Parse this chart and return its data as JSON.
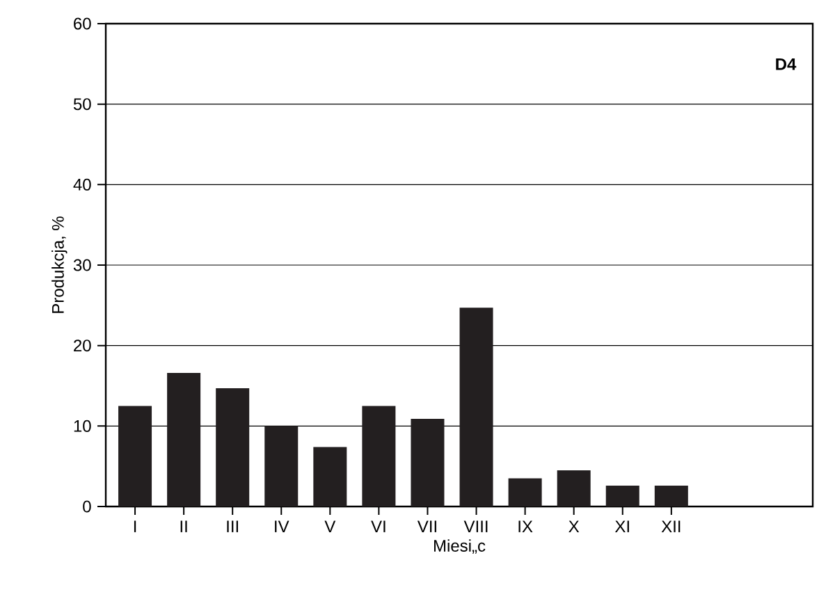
{
  "chart_data": {
    "type": "bar",
    "xlabel": "Miesi„c",
    "ylabel": "Produkcja, %",
    "categories": [
      "I",
      "II",
      "III",
      "IV",
      "V",
      "VI",
      "VII",
      "VIII",
      "IX",
      "X",
      "XI",
      "XII"
    ],
    "values": [
      12.5,
      16.6,
      14.7,
      10.0,
      7.4,
      12.5,
      10.9,
      24.7,
      3.5,
      4.5,
      2.6,
      2.6
    ],
    "color": "#231f20",
    "ylim": [
      0,
      60
    ],
    "yticks": [
      0,
      10,
      20,
      30,
      40,
      50,
      60
    ],
    "grid": "y",
    "annotations": [
      "D4"
    ]
  }
}
